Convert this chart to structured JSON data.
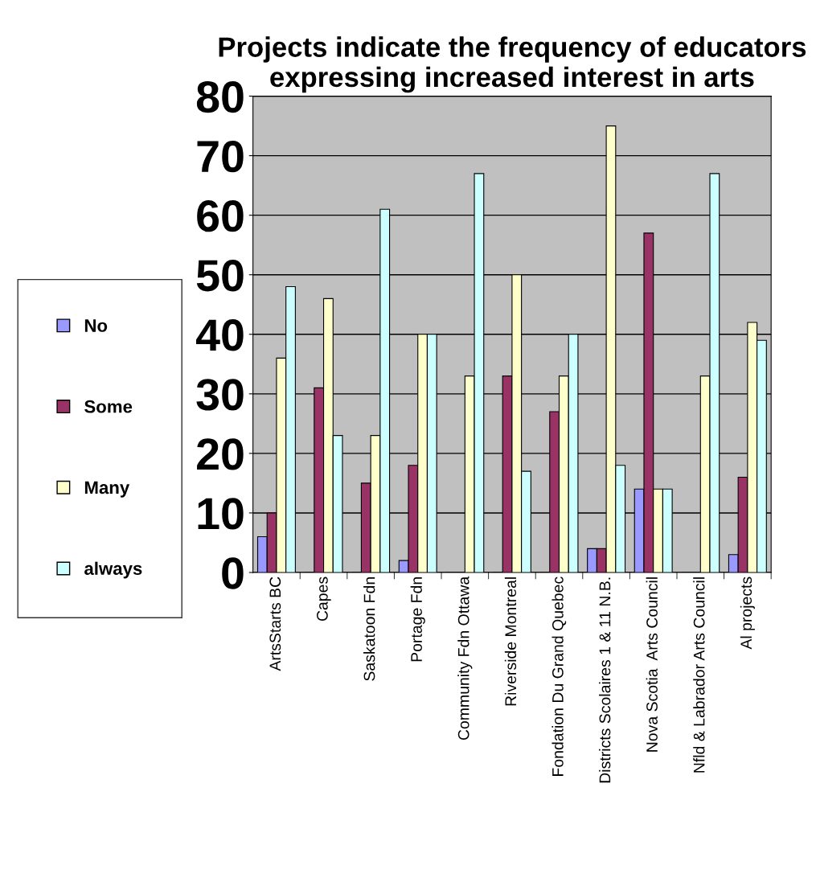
{
  "chart_data": {
    "type": "bar",
    "title": "Projects indicate the frequency of educators expressing increased interest in arts",
    "categories": [
      "ArtsStarts BC",
      "Capes",
      "Saskatoon Fdn",
      "Portage Fdn",
      "Community Fdn Ottawa",
      "Riverside Montreal",
      "Fondation Du Grand Quebec",
      "Districts Scolaires 1 & 11 N.B.",
      "Nova Scotia  Arts Council",
      "Nfld & Labrador Arts Council",
      "Al projects"
    ],
    "series": [
      {
        "name": "No",
        "color": "#9999ff",
        "values": [
          6,
          0,
          0,
          2,
          0,
          0,
          0,
          4,
          14,
          0,
          3
        ]
      },
      {
        "name": "Some",
        "color": "#993366",
        "values": [
          10,
          31,
          15,
          18,
          0,
          33,
          27,
          4,
          57,
          0,
          16
        ]
      },
      {
        "name": "Many",
        "color": "#ffffcc",
        "values": [
          36,
          46,
          23,
          40,
          33,
          50,
          33,
          75,
          14,
          33,
          42
        ]
      },
      {
        "name": "always",
        "color": "#ccffff",
        "values": [
          48,
          23,
          61,
          40,
          67,
          17,
          40,
          18,
          14,
          67,
          39
        ]
      }
    ],
    "ylim": [
      0,
      80
    ],
    "yticks": [
      0,
      10,
      20,
      30,
      40,
      50,
      60,
      70,
      80
    ],
    "grid": "y",
    "legend": "left"
  }
}
